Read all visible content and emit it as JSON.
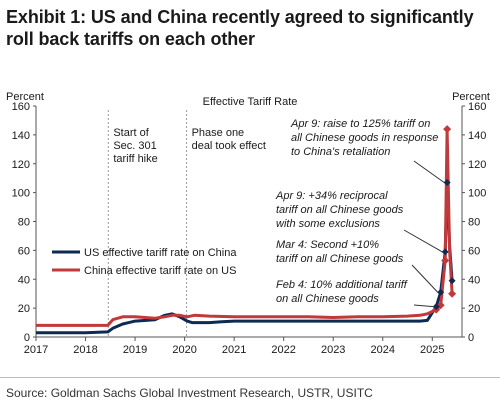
{
  "title": "Exhibit 1: US and China recently agreed to significantly roll back tariffs on each other",
  "source": "Source: Goldman Sachs Global Investment Research, USTR, USITC",
  "colors": {
    "us": "#0d2a52",
    "china": "#c0393b",
    "text": "#1a1a1a",
    "vline": "#9a9a9a",
    "axis": "#555555"
  },
  "chart_data": {
    "type": "line",
    "title": "Effective Tariff Rate",
    "ylabel_left": "Percent",
    "ylabel_right": "Percent",
    "ylim": [
      0,
      160
    ],
    "yticks": [
      0,
      20,
      40,
      60,
      80,
      100,
      120,
      140,
      160
    ],
    "xlim": [
      2017.0,
      2025.6
    ],
    "xticks": [
      "2017",
      "2018",
      "2019",
      "2020",
      "2021",
      "2022",
      "2023",
      "2024",
      "2025"
    ],
    "grid": false,
    "legend_position": "center-left",
    "series": [
      {
        "name": "US effective tariff rate on China",
        "color": "#0d2a52",
        "x": [
          2017.0,
          2017.5,
          2018.0,
          2018.45,
          2018.55,
          2018.75,
          2019.0,
          2019.4,
          2019.6,
          2019.75,
          2019.9,
          2020.05,
          2020.15,
          2020.3,
          2020.5,
          2020.75,
          2021.0,
          2021.5,
          2022.0,
          2022.5,
          2023.0,
          2023.5,
          2024.0,
          2024.5,
          2024.75,
          2024.9,
          2025.08,
          2025.17,
          2025.26,
          2025.3,
          2025.35,
          2025.4
        ],
        "y": [
          3,
          3,
          3,
          3.5,
          6,
          9,
          11,
          12,
          15,
          16,
          14,
          11,
          10,
          10,
          10,
          10.5,
          11,
          11,
          11,
          11,
          11,
          11,
          11,
          11,
          11,
          11.5,
          21,
          31,
          59,
          107,
          63,
          39
        ]
      },
      {
        "name": "China effective tariff rate on US",
        "color": "#c0393b",
        "x": [
          2017.0,
          2017.5,
          2018.0,
          2018.45,
          2018.55,
          2018.75,
          2019.0,
          2019.4,
          2019.6,
          2019.75,
          2019.9,
          2020.05,
          2020.2,
          2020.5,
          2021.0,
          2021.5,
          2022.0,
          2022.5,
          2023.0,
          2023.5,
          2024.0,
          2024.5,
          2024.75,
          2024.9,
          2025.08,
          2025.17,
          2025.26,
          2025.3,
          2025.35,
          2025.4
        ],
        "y": [
          8,
          8,
          8,
          8,
          12,
          14,
          14,
          13,
          14,
          15,
          15,
          14,
          15,
          14.5,
          14,
          14,
          14,
          14,
          13.5,
          14,
          14,
          14.5,
          15,
          16,
          19,
          22,
          53,
          144,
          60,
          30
        ]
      }
    ],
    "markers": {
      "us": {
        "x": [
          2025.08,
          2025.17,
          2025.26,
          2025.3,
          2025.4
        ],
        "y": [
          21,
          31,
          59,
          107,
          39
        ]
      },
      "china": {
        "x": [
          2025.08,
          2025.17,
          2025.26,
          2025.3,
          2025.4
        ],
        "y": [
          19,
          22,
          53,
          144,
          30
        ]
      }
    },
    "vlines": [
      {
        "x": 2018.46,
        "label": [
          "Start of",
          "Sec. 301",
          "tariff hike"
        ]
      },
      {
        "x": 2020.04,
        "label": [
          "Phase one",
          "deal took effect"
        ]
      }
    ],
    "annotations": [
      {
        "lines": [
          "Apr 9: raise to 125% tariff on",
          "all Chinese goods in response",
          "to China's retaliation"
        ],
        "target": [
          2025.3,
          107
        ]
      },
      {
        "lines": [
          "Apr 9: +34% reciprocal",
          "tariff on all Chinese goods",
          "with some exclusions"
        ],
        "target": [
          2025.26,
          59
        ]
      },
      {
        "lines": [
          "Mar 4: Second +10%",
          "tariff on all Chinese goods"
        ],
        "target": [
          2025.17,
          31
        ]
      },
      {
        "lines": [
          "Feb 4: 10% additional tariff",
          "on all Chinese goods"
        ],
        "target": [
          2025.08,
          21
        ]
      }
    ]
  }
}
